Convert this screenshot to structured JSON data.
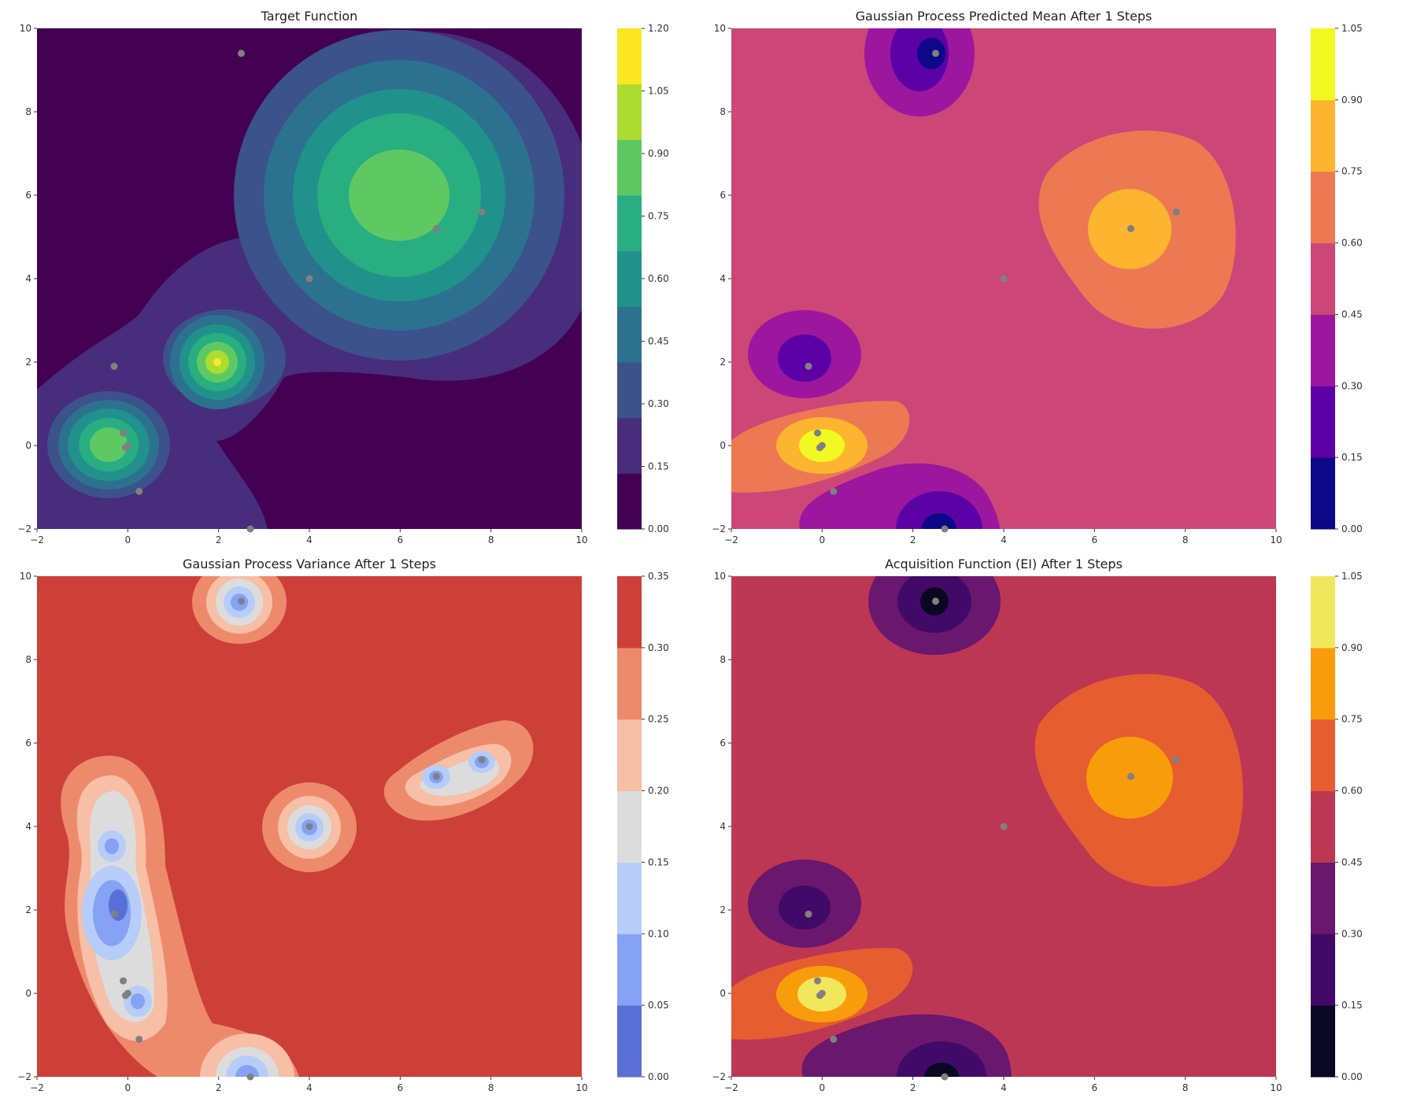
{
  "chart_data": [
    {
      "type": "contour",
      "title": "Target Function",
      "xlabel": "",
      "ylabel": "",
      "xlim": [
        -2,
        10
      ],
      "ylim": [
        -2,
        10
      ],
      "x_ticks": [
        "−2",
        "0",
        "2",
        "4",
        "6",
        "8",
        "10"
      ],
      "y_ticks": [
        "−2",
        "0",
        "2",
        "4",
        "6",
        "8",
        "10"
      ],
      "colorbar_ticks": [
        "0.00",
        "0.15",
        "0.30",
        "0.45",
        "0.60",
        "0.75",
        "0.90",
        "1.05",
        "1.20"
      ],
      "colors": [
        "#440154",
        "#472d7b",
        "#3b528b",
        "#2c728e",
        "#21918c",
        "#28ae80",
        "#5ec962",
        "#addc30",
        "#fde725"
      ],
      "points": [
        [
          2.5,
          9.4
        ],
        [
          4,
          4
        ],
        [
          6.8,
          5.2
        ],
        [
          7.8,
          5.6
        ],
        [
          -0.3,
          1.9
        ],
        [
          -0.1,
          0.3
        ],
        [
          0,
          0
        ],
        [
          -0.05,
          -0.05
        ],
        [
          0.25,
          -1.1
        ],
        [
          2.7,
          -2
        ]
      ]
    },
    {
      "type": "contour",
      "title": "Gaussian Process Predicted Mean After 1 Steps",
      "xlabel": "",
      "ylabel": "",
      "xlim": [
        -2,
        10
      ],
      "ylim": [
        -2,
        10
      ],
      "x_ticks": [
        "−2",
        "0",
        "2",
        "4",
        "6",
        "8",
        "10"
      ],
      "y_ticks": [
        "−2",
        "0",
        "2",
        "4",
        "6",
        "8",
        "10"
      ],
      "colorbar_ticks": [
        "0.00",
        "0.15",
        "0.30",
        "0.45",
        "0.60",
        "0.75",
        "0.90",
        "1.05"
      ],
      "colors": [
        "#0d0887",
        "#5c01a6",
        "#9c179e",
        "#cc4778",
        "#ed7953",
        "#fdb42f",
        "#f0f921"
      ],
      "points": [
        [
          2.5,
          9.4
        ],
        [
          4,
          4
        ],
        [
          6.8,
          5.2
        ],
        [
          7.8,
          5.6
        ],
        [
          -0.3,
          1.9
        ],
        [
          -0.1,
          0.3
        ],
        [
          0,
          0
        ],
        [
          -0.05,
          -0.05
        ],
        [
          0.25,
          -1.1
        ],
        [
          2.7,
          -2
        ]
      ]
    },
    {
      "type": "contour",
      "title": "Gaussian Process Variance After 1 Steps",
      "xlabel": "",
      "ylabel": "",
      "xlim": [
        -2,
        10
      ],
      "ylim": [
        -2,
        10
      ],
      "x_ticks": [
        "−2",
        "0",
        "2",
        "4",
        "6",
        "8",
        "10"
      ],
      "y_ticks": [
        "−2",
        "0",
        "2",
        "4",
        "6",
        "8",
        "10"
      ],
      "colorbar_ticks": [
        "0.00",
        "0.05",
        "0.10",
        "0.15",
        "0.20",
        "0.25",
        "0.30",
        "0.35"
      ],
      "colors": [
        "#5a6fd6",
        "#85a2f5",
        "#b5cdf8",
        "#dcdcdc",
        "#f6bfa6",
        "#ee8a6c",
        "#cc4038"
      ],
      "points": [
        [
          2.5,
          9.4
        ],
        [
          4,
          4
        ],
        [
          6.8,
          5.2
        ],
        [
          7.8,
          5.6
        ],
        [
          -0.3,
          1.9
        ],
        [
          -0.1,
          0.3
        ],
        [
          0,
          0
        ],
        [
          -0.05,
          -0.05
        ],
        [
          0.25,
          -1.1
        ],
        [
          2.7,
          -2
        ]
      ]
    },
    {
      "type": "contour",
      "title": "Acquisition Function (EI) After 1 Steps",
      "xlabel": "",
      "ylabel": "",
      "xlim": [
        -2,
        10
      ],
      "ylim": [
        -2,
        10
      ],
      "x_ticks": [
        "−2",
        "0",
        "2",
        "4",
        "6",
        "8",
        "10"
      ],
      "y_ticks": [
        "−2",
        "0",
        "2",
        "4",
        "6",
        "8",
        "10"
      ],
      "colorbar_ticks": [
        "0.00",
        "0.15",
        "0.30",
        "0.45",
        "0.60",
        "0.75",
        "0.90",
        "1.05"
      ],
      "colors": [
        "#0a0722",
        "#420a68",
        "#6a176e",
        "#bc3754",
        "#e65d2f",
        "#f99c0b",
        "#f1e75c"
      ],
      "points": [
        [
          2.5,
          9.4
        ],
        [
          4,
          4
        ],
        [
          6.8,
          5.2
        ],
        [
          7.8,
          5.6
        ],
        [
          -0.3,
          1.9
        ],
        [
          -0.1,
          0.3
        ],
        [
          0,
          0
        ],
        [
          -0.05,
          -0.05
        ],
        [
          0.25,
          -1.1
        ],
        [
          2.7,
          -2
        ]
      ]
    }
  ]
}
